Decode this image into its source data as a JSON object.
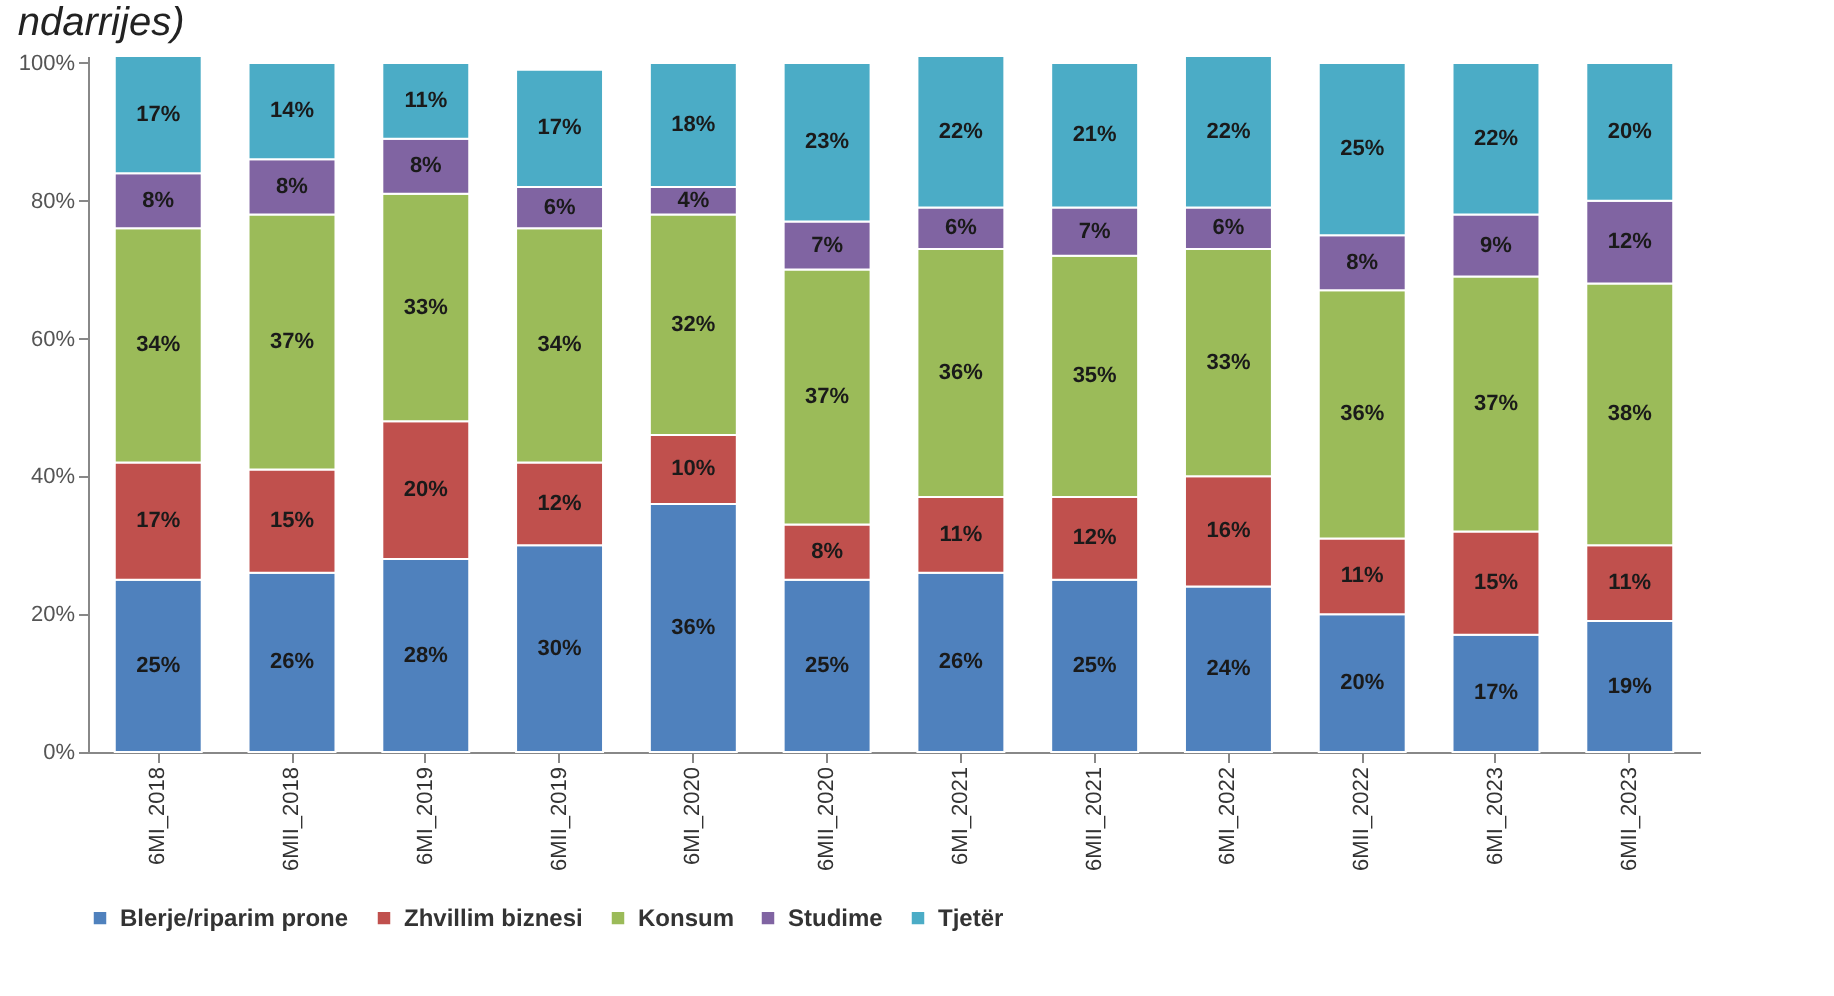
{
  "chart_data": {
    "type": "bar",
    "stacked": true,
    "title": "ndarrijes)",
    "categories": [
      "6MI_2018",
      "6MII_2018",
      "6MI_2019",
      "6MII_2019",
      "6MI_2020",
      "6MII_2020",
      "6MI_2021",
      "6MII_2021",
      "6MI_2022",
      "6MII_2022",
      "6MI_2023",
      "6MII_2023"
    ],
    "series": [
      {
        "name": "Blerje/riparim prone",
        "color": "#4f81bd",
        "values": [
          25,
          26,
          28,
          30,
          36,
          25,
          26,
          25,
          24,
          20,
          17,
          19
        ],
        "value_labels": [
          "25%",
          "26%",
          "28%",
          "30%",
          "36%",
          "25%",
          "26%",
          "25%",
          "24%",
          "20%",
          "17%",
          "19%"
        ]
      },
      {
        "name": "Zhvillim biznesi",
        "color": "#c0504d",
        "values": [
          17,
          15,
          20,
          12,
          10,
          8,
          11,
          12,
          16,
          11,
          15,
          11
        ],
        "value_labels": [
          "17%",
          "15%",
          "20%",
          "12%",
          "10%",
          "8%",
          "11%",
          "12%",
          "16%",
          "11%",
          "15%",
          "11%"
        ]
      },
      {
        "name": "Konsum",
        "color": "#9bbb59",
        "values": [
          34,
          37,
          33,
          34,
          32,
          37,
          36,
          35,
          33,
          36,
          37,
          38
        ],
        "value_labels": [
          "34%",
          "37%",
          "33%",
          "34%",
          "32%",
          "37%",
          "36%",
          "35%",
          "33%",
          "36%",
          "37%",
          "38%"
        ]
      },
      {
        "name": "Studime",
        "color": "#8064a2",
        "values": [
          8,
          8,
          8,
          6,
          4,
          7,
          6,
          7,
          6,
          8,
          9,
          12
        ],
        "value_labels": [
          "8%",
          "8%",
          "8%",
          "6%",
          "4%",
          "7%",
          "6%",
          "7%",
          "6%",
          "8%",
          "9%",
          "12%"
        ]
      },
      {
        "name": "Tjetër",
        "color": "#4bacc6",
        "values": [
          17,
          14,
          11,
          17,
          18,
          23,
          22,
          21,
          22,
          25,
          22,
          20
        ],
        "value_labels": [
          "17%",
          "14%",
          "11%",
          "17%",
          "18%",
          "23%",
          "22%",
          "21%",
          "22%",
          "25%",
          "22%",
          "20%"
        ]
      }
    ],
    "ylim": [
      0,
      101
    ],
    "yticks": [
      {
        "value": 0,
        "label": "0%"
      },
      {
        "value": 20,
        "label": "20%"
      },
      {
        "value": 40,
        "label": "40%"
      },
      {
        "value": 60,
        "label": "60%"
      },
      {
        "value": 80,
        "label": "80%"
      },
      {
        "value": 100,
        "label": "100%"
      }
    ],
    "legend": "bottom",
    "grid": false
  }
}
